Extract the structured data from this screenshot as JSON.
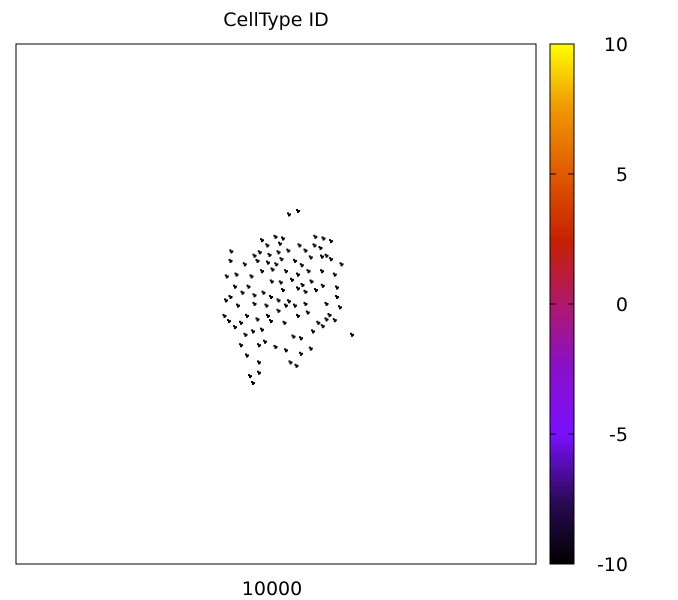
{
  "chart_data": {
    "type": "heatmap",
    "title": "CellType ID",
    "xlabel": "10000",
    "ylabel": "",
    "colorbar": {
      "range": [
        -10,
        10
      ],
      "ticks": [
        10,
        5,
        0,
        -5,
        -10
      ],
      "tick_labels": [
        "10",
        "5",
        "0",
        "-5",
        "-10"
      ],
      "palette": "black-purple-red-orange-yellow"
    },
    "grid": false,
    "legend": "colorbar at right",
    "series": [
      {
        "value": -10,
        "color": "#000000",
        "points": [
          [
            -0.3,
            0.48
          ],
          [
            -0.23,
            0.52
          ],
          [
            -0.13,
            0.6
          ],
          [
            -0.02,
            0.7
          ],
          [
            0.08,
            0.68
          ],
          [
            0.15,
            0.54
          ],
          [
            0.06,
            0.44
          ],
          [
            -0.2,
            0.66
          ],
          [
            -0.26,
            0.42
          ],
          [
            -0.1,
            0.49
          ],
          [
            0.02,
            0.52
          ],
          [
            0.24,
            0.42
          ],
          [
            0.28,
            0.26
          ],
          [
            0.05,
            0.17
          ],
          [
            0.28,
            1.0
          ],
          [
            0.16,
            0.96
          ],
          [
            0.6,
            0.47
          ],
          [
            0.58,
            0.57
          ],
          [
            0.5,
            0.6
          ],
          [
            0.38,
            0.54
          ],
          [
            0.45,
            0.46
          ],
          [
            0.33,
            0.37
          ],
          [
            0.51,
            0.7
          ],
          [
            0.62,
            0.68
          ],
          [
            0.72,
            0.65
          ],
          [
            0.72,
            0.44
          ],
          [
            0.86,
            0.38
          ],
          [
            0.77,
            0.26
          ],
          [
            0.8,
            0.11
          ],
          [
            0.8,
            0.0
          ],
          [
            0.84,
            -0.12
          ],
          [
            0.77,
            -0.27
          ],
          [
            0.7,
            -0.21
          ],
          [
            0.66,
            -0.08
          ],
          [
            0.61,
            0.13
          ],
          [
            0.6,
            0.3
          ],
          [
            0.46,
            0.18
          ],
          [
            0.38,
            0.06
          ],
          [
            0.38,
            -0.08
          ],
          [
            0.41,
            -0.18
          ],
          [
            0.28,
            -0.22
          ],
          [
            0.16,
            -0.05
          ],
          [
            0.08,
            0.08
          ],
          [
            -0.07,
            0.18
          ],
          [
            -0.06,
            0.32
          ],
          [
            -0.01,
            0.38
          ],
          [
            -0.12,
            -0.22
          ],
          [
            -0.26,
            -0.26
          ],
          [
            -0.4,
            -0.22
          ],
          [
            -0.52,
            -0.1
          ],
          [
            -0.62,
            0.0
          ],
          [
            -0.46,
            0.05
          ],
          [
            -0.3,
            -0.08
          ],
          [
            -0.18,
            0.05
          ],
          [
            -0.2,
            0.3
          ],
          [
            -0.34,
            0.24
          ],
          [
            -0.43,
            0.38
          ],
          [
            -0.54,
            0.26
          ],
          [
            -0.62,
            0.42
          ],
          [
            -0.61,
            0.53
          ],
          [
            -0.67,
            0.24
          ],
          [
            -0.68,
            -0.04
          ],
          [
            -0.7,
            -0.22
          ],
          [
            -0.64,
            -0.28
          ],
          [
            -0.56,
            -0.35
          ],
          [
            -0.42,
            -0.44
          ],
          [
            -0.32,
            -0.4
          ],
          [
            -0.2,
            -0.38
          ],
          [
            -0.08,
            -0.28
          ],
          [
            0.02,
            -0.16
          ],
          [
            0.1,
            -0.3
          ],
          [
            0.22,
            -0.46
          ],
          [
            0.32,
            -0.48
          ],
          [
            0.48,
            -0.4
          ],
          [
            0.55,
            -0.3
          ],
          [
            0.61,
            -0.34
          ],
          [
            0.66,
            -0.26
          ],
          [
            0.45,
            -0.6
          ],
          [
            0.32,
            -0.66
          ],
          [
            0.12,
            -0.62
          ],
          [
            -0.02,
            -0.58
          ],
          [
            -0.16,
            -0.52
          ],
          [
            -0.24,
            -0.56
          ],
          [
            -0.48,
            -0.56
          ],
          [
            -0.4,
            -0.68
          ],
          [
            -0.24,
            -0.76
          ],
          [
            -0.24,
            -0.88
          ],
          [
            -0.36,
            -0.92
          ],
          [
            -0.32,
            -1.0
          ],
          [
            0.18,
            -0.76
          ],
          [
            0.26,
            -0.8
          ],
          [
            0.12,
            0.3
          ],
          [
            0.2,
            0.2
          ],
          [
            0.28,
            0.1
          ],
          [
            0.34,
            0.14
          ],
          [
            0.12,
            -0.1
          ],
          [
            0.02,
            -0.04
          ],
          [
            -0.08,
            0.0
          ],
          [
            -0.38,
            0.12
          ],
          [
            -0.48,
            -0.3
          ],
          [
            -0.12,
            0.4
          ],
          [
            0.42,
            0.3
          ],
          [
            0.52,
            0.08
          ],
          [
            0.24,
            -0.1
          ],
          [
            -0.3,
            0.02
          ],
          [
            0.04,
            0.62
          ],
          [
            0.66,
            0.48
          ],
          [
            1.0,
            -0.44
          ],
          [
            -0.56,
            0.12
          ],
          [
            0.3,
            0.6
          ],
          [
            -0.14,
            -0.1
          ]
        ]
      }
    ]
  }
}
